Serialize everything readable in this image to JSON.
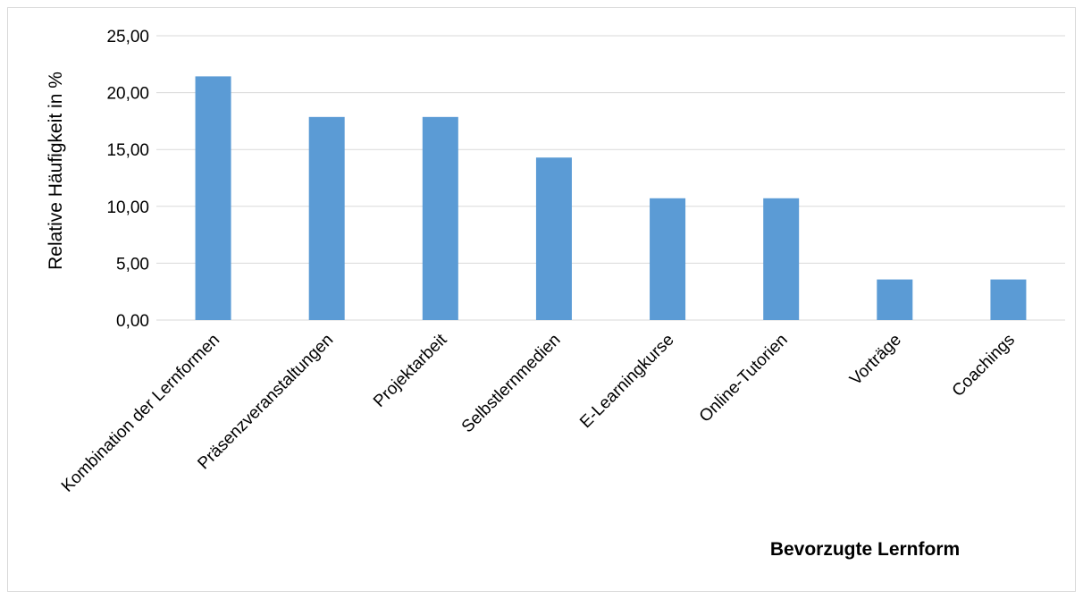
{
  "chart_data": {
    "type": "bar",
    "title": "",
    "xlabel": "Bevorzugte Lernform",
    "ylabel": "Relative Häufigkeit in %",
    "categories": [
      "Kombination der Lernformen",
      "Präsenzveranstaltungen",
      "Projektarbeit",
      "Selbstlernmedien",
      "E-Learningkurse",
      "Online-Tutorien",
      "Vorträge",
      "Coachings"
    ],
    "values": [
      21.43,
      17.86,
      17.86,
      14.29,
      10.71,
      10.71,
      3.57,
      3.57
    ],
    "ylim": [
      0,
      25
    ],
    "yticks": [
      0,
      5,
      10,
      15,
      20,
      25
    ],
    "ytick_labels": [
      "0,00",
      "5,00",
      "10,00",
      "15,00",
      "20,00",
      "25,00"
    ],
    "grid": true,
    "legend": "none",
    "colors": {
      "bar": "#5b9bd5",
      "grid": "#d9d9d9",
      "border": "#d9d9d9"
    }
  }
}
